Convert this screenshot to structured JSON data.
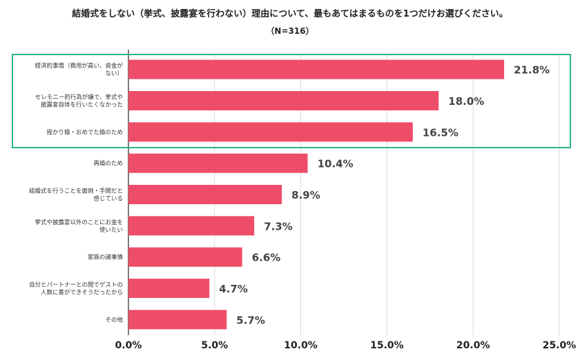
{
  "chart_data": {
    "type": "bar",
    "orientation": "horizontal",
    "title": "結婚式をしない（挙式、披露宴を行わない）理由について、最もあてはまるものを1つだけお選びください。",
    "subtitle": "（N=316）",
    "categories": [
      [
        "経済的事情（費用が高い、資金が",
        "ない）"
      ],
      [
        "セレモニー的行為が嫌で、挙式や",
        "披露宴自体を行いたくなかった"
      ],
      [
        "授かり婚・おめでた婚のため"
      ],
      [
        "再婚のため"
      ],
      [
        "結婚式を行うことを面倒・手間だと",
        "感じている"
      ],
      [
        "挙式や披露宴以外のことにお金を",
        "使いたい"
      ],
      [
        "家族の諸事情"
      ],
      [
        "自分とパートナーとの間でゲストの",
        "人数に差ができそうだったから"
      ],
      [
        "その他"
      ]
    ],
    "values": [
      21.8,
      18.0,
      16.5,
      10.4,
      8.9,
      7.3,
      6.6,
      4.7,
      5.7
    ],
    "data_labels": [
      "21.8%",
      "18.0%",
      "16.5%",
      "10.4%",
      "8.9%",
      "7.3%",
      "6.6%",
      "4.7%",
      "5.7%"
    ],
    "xlim": [
      0,
      25
    ],
    "xticks": [
      0,
      5,
      10,
      15,
      20,
      25
    ],
    "xtick_labels": [
      "0.0%",
      "5.0%",
      "10.0%",
      "15.0%",
      "20.0%",
      "25.0%"
    ],
    "grid": "vertical",
    "highlight": {
      "from_index": 0,
      "to_index": 2
    },
    "colors": {
      "bar": "#ee4d69",
      "grid": "#d9d9d9",
      "axis": "#222222",
      "highlight_border": "#2bb38e"
    }
  }
}
